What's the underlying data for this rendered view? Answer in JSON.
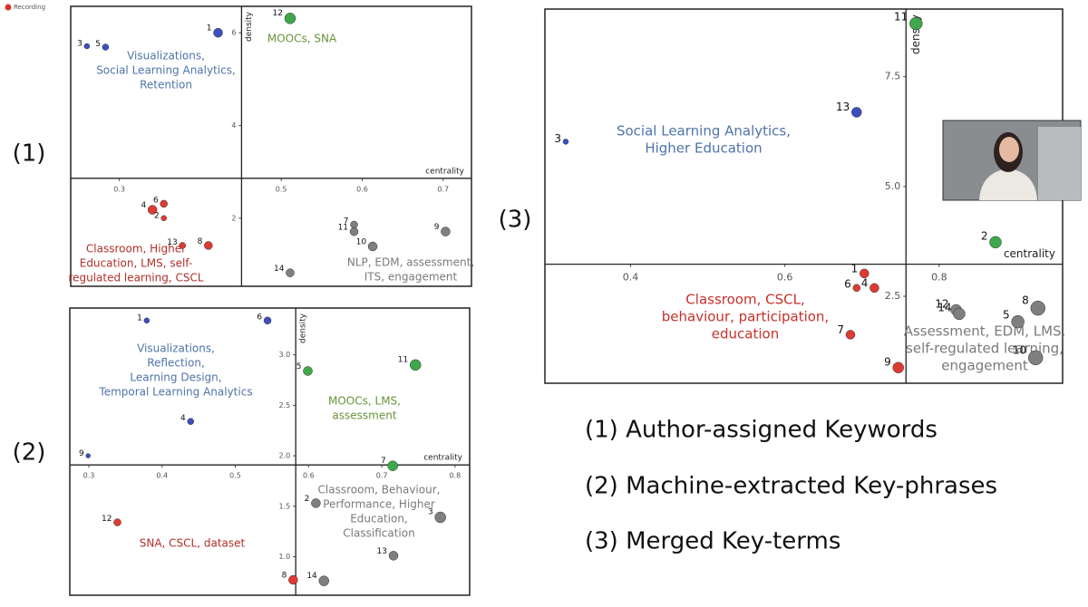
{
  "recording": "Recording",
  "panel_labels": [
    "(1)",
    "(2)",
    "(3)"
  ],
  "captions": [
    "(1) Author-assigned Keywords",
    "(2) Machine-extracted Key-phrases",
    "(3) Merged Key-terms"
  ],
  "chart_data": [
    {
      "type": "scatter",
      "xlabel": "centrality",
      "ylabel": "density",
      "xlim": [
        0.24,
        0.735
      ],
      "ylim": [
        0.53,
        6.57
      ],
      "xticks": [
        0.3,
        0.5,
        0.6,
        0.7
      ],
      "yticks": [
        2,
        4,
        6
      ],
      "axis_cross": [
        0.451,
        2.86
      ],
      "labels": [
        "1",
        "3",
        "5",
        "12",
        "6",
        "4",
        "2",
        "13",
        "8",
        "7",
        "11",
        "10",
        "9",
        "14"
      ],
      "x": [
        0.422,
        0.26,
        0.283,
        0.511,
        0.355,
        0.341,
        0.355,
        0.378,
        0.41,
        0.59,
        0.59,
        0.613,
        0.703,
        0.511
      ],
      "values": [
        6.0,
        5.71,
        5.69,
        6.31,
        2.31,
        2.18,
        2.0,
        1.41,
        1.41,
        1.86,
        1.71,
        1.39,
        1.71,
        0.82
      ],
      "sizes": [
        5,
        3,
        3.5,
        6,
        4,
        5,
        3,
        3.5,
        4.5,
        4,
        4.5,
        5,
        5,
        4.5
      ],
      "colors": [
        "#3b4fc0",
        "#3b4fc0",
        "#3b4fc0",
        "#3fa84a",
        "#de3b33",
        "#de3b33",
        "#de3b33",
        "#de3b33",
        "#de3b33",
        "#7f7f7f",
        "#7f7f7f",
        "#7f7f7f",
        "#7f7f7f",
        "#7f7f7f"
      ],
      "annotations": [
        {
          "lines": [
            "Visualizations,",
            "Social Learning Analytics,",
            "Retention"
          ],
          "color": "#4f74a8"
        },
        {
          "lines": [
            "MOOCs, SNA"
          ],
          "color": "#66953a"
        },
        {
          "lines": [
            "Classroom, Higher",
            "Education, LMS, self-",
            "regulated learning, CSCL"
          ],
          "color": "#b0302a"
        },
        {
          "lines": [
            "NLP, EDM, assessment,",
            "ITS, engagement"
          ],
          "color": "#7a7a7a"
        }
      ]
    },
    {
      "type": "scatter",
      "xlabel": "centrality",
      "ylabel": "density",
      "xlim": [
        0.274,
        0.82
      ],
      "ylim": [
        0.618,
        3.464
      ],
      "xticks": [
        0.3,
        0.4,
        0.5,
        0.6,
        0.7,
        0.8
      ],
      "yticks": [
        {
          "value": 3,
          "label": "3.0"
        },
        2.5,
        {
          "value": 2,
          "label": "2.0"
        },
        1.5,
        {
          "value": 1,
          "label": "1.0"
        }
      ],
      "axis_cross": [
        0.5825,
        1.909
      ],
      "labels": [
        "1",
        "6",
        "4",
        "9",
        "5",
        "11",
        "7",
        "12",
        "8",
        "2",
        "3",
        "13",
        "14"
      ],
      "x": [
        0.379,
        0.544,
        0.439,
        0.299,
        0.599,
        0.746,
        0.715,
        0.339,
        0.579,
        0.61,
        0.78,
        0.716,
        0.621
      ],
      "values": [
        3.34,
        3.34,
        2.34,
        2.0,
        2.84,
        2.9,
        1.9,
        1.34,
        0.77,
        1.53,
        1.39,
        1.01,
        0.76
      ],
      "sizes": [
        3,
        4,
        3.5,
        2.5,
        5,
        6,
        5.5,
        4,
        5,
        5,
        6,
        5,
        5.5
      ],
      "colors": [
        "#3b4fc0",
        "#3b4fc0",
        "#3b4fc0",
        "#3b4fc0",
        "#3fa84a",
        "#3fa84a",
        "#3fa84a",
        "#de3b33",
        "#de3b33",
        "#7f7f7f",
        "#7f7f7f",
        "#7f7f7f",
        "#7f7f7f"
      ],
      "annotations": [
        {
          "lines": [
            "Visualizations,",
            "Reflection,",
            "Learning Design,",
            "Temporal Learning Analytics"
          ],
          "color": "#4f74a8"
        },
        {
          "lines": [
            "MOOCs, LMS,",
            "assessment"
          ],
          "color": "#66953a"
        },
        {
          "lines": [
            "SNA, CSCL, dataset"
          ],
          "color": "#b0302a"
        },
        {
          "lines": [
            "Classroom, Behaviour,",
            "Performance, Higher",
            "Education,",
            "Classification"
          ],
          "color": "#7a7a7a"
        }
      ]
    },
    {
      "type": "scatter",
      "xlabel": "centrality",
      "ylabel": "density",
      "xlim": [
        0.289,
        0.96
      ],
      "ylim": [
        0.52,
        9.04
      ],
      "xticks": [
        0.4,
        0.6,
        0.8
      ],
      "yticks": [
        7.5,
        {
          "value": 5,
          "label": "5.0"
        },
        2.5
      ],
      "axis_cross": [
        0.757,
        3.23
      ],
      "labels": [
        "11",
        "2",
        "13",
        "3",
        "1",
        "6",
        "4",
        "7",
        "9",
        "12",
        "14",
        "8",
        "5",
        "10"
      ],
      "x": [
        0.77,
        0.873,
        0.693,
        0.316,
        0.703,
        0.693,
        0.716,
        0.685,
        0.747,
        0.822,
        0.826,
        0.928,
        0.902,
        0.925
      ],
      "values": [
        8.71,
        3.73,
        6.69,
        6.02,
        3.02,
        2.69,
        2.69,
        1.625,
        0.875,
        2.19,
        2.1,
        2.23,
        1.92,
        1.1
      ],
      "sizes": [
        7,
        6.5,
        5.5,
        3,
        5,
        4,
        5,
        5,
        6,
        6,
        6.5,
        8,
        7,
        8
      ],
      "colors": [
        "#3fa84a",
        "#3fa84a",
        "#3b4fc0",
        "#3b4fc0",
        "#de3b33",
        "#de3b33",
        "#de3b33",
        "#de3b33",
        "#de3b33",
        "#7f7f7f",
        "#7f7f7f",
        "#7f7f7f",
        "#7f7f7f",
        "#7f7f7f"
      ],
      "annotations": [
        {
          "lines": [
            "Social Learning Analytics,",
            "Higher Education"
          ],
          "color": "#4f74a8"
        },
        {
          "lines": [
            "Classroom, CSCL,",
            "behaviour, participation,",
            "education"
          ],
          "color": "#c8302a"
        },
        {
          "lines": [
            "Assessment, EDM, LMS,",
            "self-regulated learning,",
            "engagement"
          ],
          "color": "#7a7a7a"
        }
      ]
    }
  ]
}
